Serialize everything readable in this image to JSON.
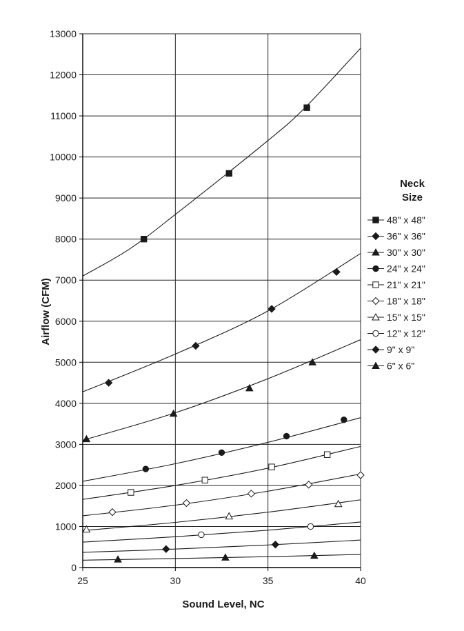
{
  "chart_data": {
    "type": "line",
    "title": "",
    "xlabel": "Sound Level, NC",
    "ylabel": "Airflow (CFM)",
    "xlim": [
      25,
      40
    ],
    "ylim": [
      0,
      13000
    ],
    "x_ticks": [
      25,
      30,
      35,
      40
    ],
    "y_ticks": [
      0,
      1000,
      2000,
      3000,
      4000,
      5000,
      6000,
      7000,
      8000,
      9000,
      10000,
      11000,
      12000,
      13000
    ],
    "grid": true,
    "legend_title": [
      "Neck",
      "Size"
    ],
    "legend_position": "right",
    "series": [
      {
        "name": "48\" x 48\"",
        "marker": "square-filled",
        "line": [
          [
            25,
            7100
          ],
          [
            27.5,
            7750
          ],
          [
            30,
            8600
          ],
          [
            35,
            10400
          ],
          [
            37,
            11200
          ],
          [
            40,
            12650
          ]
        ],
        "markers": [
          [
            28.3,
            8000
          ],
          [
            32.9,
            9600
          ],
          [
            37.1,
            11200
          ]
        ]
      },
      {
        "name": "36\" x 36\"",
        "marker": "diamond-filled",
        "line": [
          [
            25,
            4280
          ],
          [
            30,
            5200
          ],
          [
            35,
            6250
          ],
          [
            40,
            7650
          ]
        ],
        "markers": [
          [
            26.4,
            4500
          ],
          [
            31.1,
            5400
          ],
          [
            35.2,
            6300
          ],
          [
            38.7,
            7200
          ]
        ]
      },
      {
        "name": "30\" x 30\"",
        "marker": "triangle-filled",
        "line": [
          [
            25,
            3100
          ],
          [
            30,
            3770
          ],
          [
            35,
            4600
          ],
          [
            40,
            5550
          ]
        ],
        "markers": [
          [
            25.2,
            3130
          ],
          [
            29.9,
            3750
          ],
          [
            34,
            4370
          ],
          [
            37.4,
            5000
          ]
        ]
      },
      {
        "name": "24\" x 24\"",
        "marker": "circle-filled",
        "line": [
          [
            25,
            2100
          ],
          [
            30,
            2530
          ],
          [
            35,
            3050
          ],
          [
            40,
            3650
          ]
        ],
        "markers": [
          [
            28.4,
            2400
          ],
          [
            32.5,
            2800
          ],
          [
            36,
            3200
          ],
          [
            39.1,
            3600
          ]
        ]
      },
      {
        "name": "21\" x 21\"",
        "marker": "square-open",
        "line": [
          [
            25,
            1660
          ],
          [
            30,
            2000
          ],
          [
            35,
            2420
          ],
          [
            40,
            2950
          ]
        ],
        "markers": [
          [
            27.6,
            1830
          ],
          [
            31.6,
            2130
          ],
          [
            35.2,
            2450
          ],
          [
            38.2,
            2750
          ]
        ]
      },
      {
        "name": "18\" x 18\"",
        "marker": "diamond-open",
        "line": [
          [
            25,
            1260
          ],
          [
            30,
            1520
          ],
          [
            35,
            1860
          ],
          [
            40,
            2280
          ]
        ],
        "markers": [
          [
            26.6,
            1350
          ],
          [
            30.6,
            1570
          ],
          [
            34.1,
            1800
          ],
          [
            37.2,
            2020
          ],
          [
            40,
            2250
          ]
        ]
      },
      {
        "name": "15\" x 15\"",
        "marker": "triangle-open",
        "line": [
          [
            25,
            900
          ],
          [
            30,
            1100
          ],
          [
            35,
            1350
          ],
          [
            40,
            1650
          ]
        ],
        "markers": [
          [
            25.2,
            930
          ],
          [
            32.9,
            1250
          ],
          [
            38.8,
            1550
          ]
        ]
      },
      {
        "name": "12\" x 12\"",
        "marker": "circle-open",
        "line": [
          [
            25,
            620
          ],
          [
            30,
            750
          ],
          [
            35,
            910
          ],
          [
            40,
            1110
          ]
        ],
        "markers": [
          [
            31.4,
            800
          ],
          [
            37.3,
            1000
          ]
        ]
      },
      {
        "name": "9\" x 9\"",
        "marker": "diamond-filled",
        "line": [
          [
            25,
            370
          ],
          [
            30,
            450
          ],
          [
            35,
            550
          ],
          [
            40,
            670
          ]
        ],
        "markers": [
          [
            29.5,
            450
          ],
          [
            35.4,
            560
          ]
        ]
      },
      {
        "name": "6\" x 6\"",
        "marker": "triangle-filled",
        "line": [
          [
            25,
            180
          ],
          [
            30,
            220
          ],
          [
            35,
            265
          ],
          [
            40,
            320
          ]
        ],
        "markers": [
          [
            26.9,
            200
          ],
          [
            32.7,
            245
          ],
          [
            37.5,
            290
          ]
        ]
      }
    ]
  }
}
